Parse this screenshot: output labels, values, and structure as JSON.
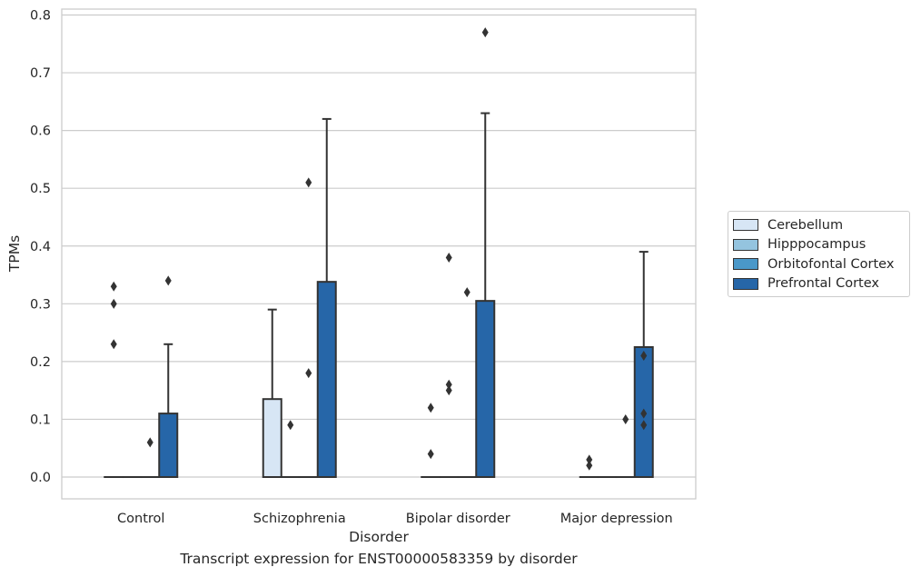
{
  "chart_data": {
    "type": "box",
    "ylabel": "TPMs",
    "xlabel": "Disorder",
    "ylim": [
      -0.04,
      0.81
    ],
    "yticks": [
      "0.0",
      "0.1",
      "0.2",
      "0.3",
      "0.4",
      "0.5",
      "0.6",
      "0.7",
      "0.8"
    ],
    "categories": [
      "Control",
      "Schizophrenia",
      "Bipolar disorder",
      "Major depression"
    ],
    "grid": "horizontal",
    "legend_position": "right",
    "colors": {
      "Cerebellum": "#d7e6f5",
      "Hipppocampus": "#94c4df",
      "Orbitofontal Cortex": "#4a98c9",
      "Prefrontal Cortex": "#2666a8"
    },
    "series": [
      {
        "name": "Cerebellum",
        "boxes": [
          {
            "q1": 0,
            "median": 0,
            "q3": 0,
            "whisker_low": 0,
            "whisker_high": 0,
            "outliers": [
              0.23,
              0.3,
              0.33
            ]
          },
          {
            "q1": 0,
            "median": 0,
            "q3": 0.135,
            "whisker_low": 0,
            "whisker_high": 0.29,
            "outliers": []
          },
          {
            "q1": 0,
            "median": 0,
            "q3": 0,
            "whisker_low": 0,
            "whisker_high": 0,
            "outliers": [
              0.04,
              0.12
            ]
          },
          {
            "q1": 0,
            "median": 0,
            "q3": 0,
            "whisker_low": 0,
            "whisker_high": 0,
            "outliers": [
              0.02,
              0.03
            ]
          }
        ]
      },
      {
        "name": "Hipppocampus",
        "boxes": [
          {
            "q1": 0,
            "median": 0,
            "q3": 0,
            "whisker_low": 0,
            "whisker_high": 0,
            "outliers": []
          },
          {
            "q1": 0,
            "median": 0,
            "q3": 0,
            "whisker_low": 0,
            "whisker_high": 0,
            "outliers": [
              0.09
            ]
          },
          {
            "q1": 0,
            "median": 0,
            "q3": 0,
            "whisker_low": 0,
            "whisker_high": 0,
            "outliers": [
              0.15,
              0.16,
              0.38
            ]
          },
          {
            "q1": 0,
            "median": 0,
            "q3": 0,
            "whisker_low": 0,
            "whisker_high": 0,
            "outliers": []
          }
        ]
      },
      {
        "name": "Orbitofontal Cortex",
        "boxes": [
          {
            "q1": 0,
            "median": 0,
            "q3": 0,
            "whisker_low": 0,
            "whisker_high": 0,
            "outliers": [
              0.06
            ]
          },
          {
            "q1": 0,
            "median": 0,
            "q3": 0,
            "whisker_low": 0,
            "whisker_high": 0,
            "outliers": [
              0.18,
              0.51
            ]
          },
          {
            "q1": 0,
            "median": 0,
            "q3": 0,
            "whisker_low": 0,
            "whisker_high": 0,
            "outliers": [
              0.32
            ]
          },
          {
            "q1": 0,
            "median": 0,
            "q3": 0,
            "whisker_low": 0,
            "whisker_high": 0,
            "outliers": [
              0.1
            ]
          }
        ]
      },
      {
        "name": "Prefrontal Cortex",
        "boxes": [
          {
            "q1": 0,
            "median": 0,
            "q3": 0.11,
            "whisker_low": 0,
            "whisker_high": 0.23,
            "outliers": [
              0.34
            ]
          },
          {
            "q1": 0,
            "median": 0,
            "q3": 0.338,
            "whisker_low": 0,
            "whisker_high": 0.62,
            "outliers": []
          },
          {
            "q1": 0,
            "median": 0,
            "q3": 0.305,
            "whisker_low": 0,
            "whisker_high": 0.63,
            "outliers": [
              0.77
            ]
          },
          {
            "q1": 0,
            "median": 0,
            "q3": 0.225,
            "whisker_low": 0,
            "whisker_high": 0.39,
            "outliers": [
              0.09,
              0.11,
              0.21
            ]
          }
        ]
      }
    ]
  },
  "caption": "Transcript expression for ENST00000583359 by disorder",
  "legend": {
    "items": [
      {
        "label": "Cerebellum"
      },
      {
        "label": "Hipppocampus"
      },
      {
        "label": "Orbitofontal Cortex"
      },
      {
        "label": "Prefrontal Cortex"
      }
    ]
  }
}
